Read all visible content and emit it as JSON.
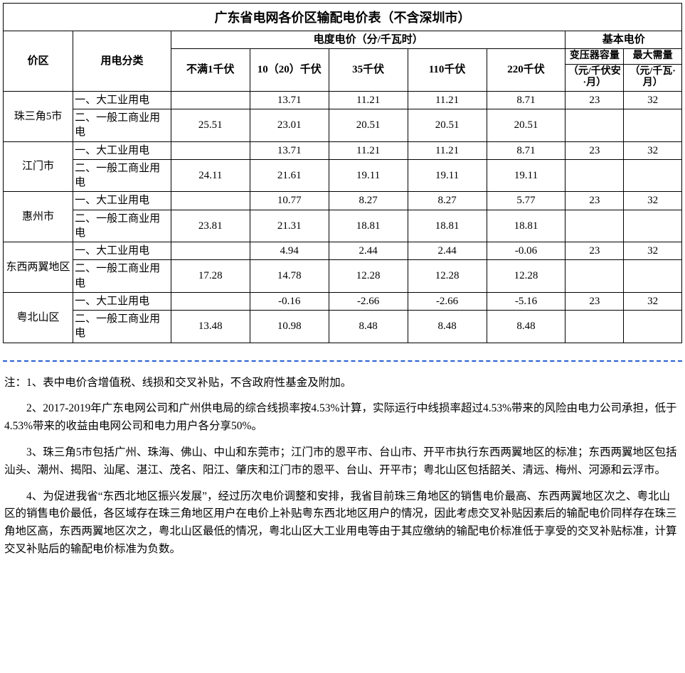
{
  "title": "广东省电网各价区输配电价表（不含深圳市）",
  "colgroups": {
    "c1_area": 84,
    "c2_cat": 118,
    "c_energy": 95,
    "c_basic": 70
  },
  "headers": {
    "area": "价区",
    "cat": "用电分类",
    "energy_group": "电度电价（分/千瓦时）",
    "basic_group": "基本电价",
    "e1": "不满1千伏",
    "e2": "10（20）千伏",
    "e3": "35千伏",
    "e4": "110千伏",
    "e5": "220千伏",
    "b1_top": "变压器容量",
    "b1_bot": "（元/千伏安·月）",
    "b2_top": "最大需量",
    "b2_bot": "（元/千瓦·月）"
  },
  "cat1": "一、大工业用电",
  "cat2": "二、一般工商业用电",
  "rows": [
    {
      "area": "珠三角5市",
      "r1": [
        "",
        "13.71",
        "11.21",
        "11.21",
        "8.71",
        "23",
        "32"
      ],
      "r2": [
        "25.51",
        "23.01",
        "20.51",
        "20.51",
        "20.51",
        "",
        ""
      ]
    },
    {
      "area": "江门市",
      "r1": [
        "",
        "13.71",
        "11.21",
        "11.21",
        "8.71",
        "23",
        "32"
      ],
      "r2": [
        "24.11",
        "21.61",
        "19.11",
        "19.11",
        "19.11",
        "",
        ""
      ]
    },
    {
      "area": "惠州市",
      "r1": [
        "",
        "10.77",
        "8.27",
        "8.27",
        "5.77",
        "23",
        "32"
      ],
      "r2": [
        "23.81",
        "21.31",
        "18.81",
        "18.81",
        "18.81",
        "",
        ""
      ]
    },
    {
      "area": "东西两翼地区",
      "r1": [
        "",
        "4.94",
        "2.44",
        "2.44",
        "-0.06",
        "23",
        "32"
      ],
      "r2": [
        "17.28",
        "14.78",
        "12.28",
        "12.28",
        "12.28",
        "",
        ""
      ]
    },
    {
      "area": "粤北山区",
      "r1": [
        "",
        "-0.16",
        "-2.66",
        "-2.66",
        "-5.16",
        "23",
        "32"
      ],
      "r2": [
        "13.48",
        "10.98",
        "8.48",
        "8.48",
        "8.48",
        "",
        ""
      ]
    }
  ],
  "notes": [
    "注：1、表中电价含增值税、线损和交叉补贴，不含政府性基金及附加。",
    "2、2017-2019年广东电网公司和广州供电局的综合线损率按4.53%计算，实际运行中线损率超过4.53%带来的风险由电力公司承担，低于4.53%带来的收益由电网公司和电力用户各分享50%。",
    "3、珠三角5市包括广州、珠海、佛山、中山和东莞市；江门市的恩平市、台山市、开平市执行东西两翼地区的标准；东西两翼地区包括汕头、潮州、揭阳、汕尾、湛江、茂名、阳江、肇庆和江门市的恩平、台山、开平市；粤北山区包括韶关、清远、梅州、河源和云浮市。",
    "4、为促进我省“东西北地区振兴发展”，经过历次电价调整和安排，我省目前珠三角地区的销售电价最高、东西两翼地区次之、粤北山区的销售电价最低，各区域存在珠三角地区用户在电价上补贴粤东西北地区用户的情况，因此考虑交叉补贴因素后的输配电价同样存在珠三角地区高，东西两翼地区次之，粤北山区最低的情况，粤北山区大工业用电等由于其应缴纳的输配电价标准低于享受的交叉补贴标准，计算交叉补贴后的输配电价标准为负数。"
  ],
  "style": {
    "border_color": "#000000",
    "dash_color": "#2860d0",
    "title_fontsize": 18,
    "body_fontsize": 15
  }
}
